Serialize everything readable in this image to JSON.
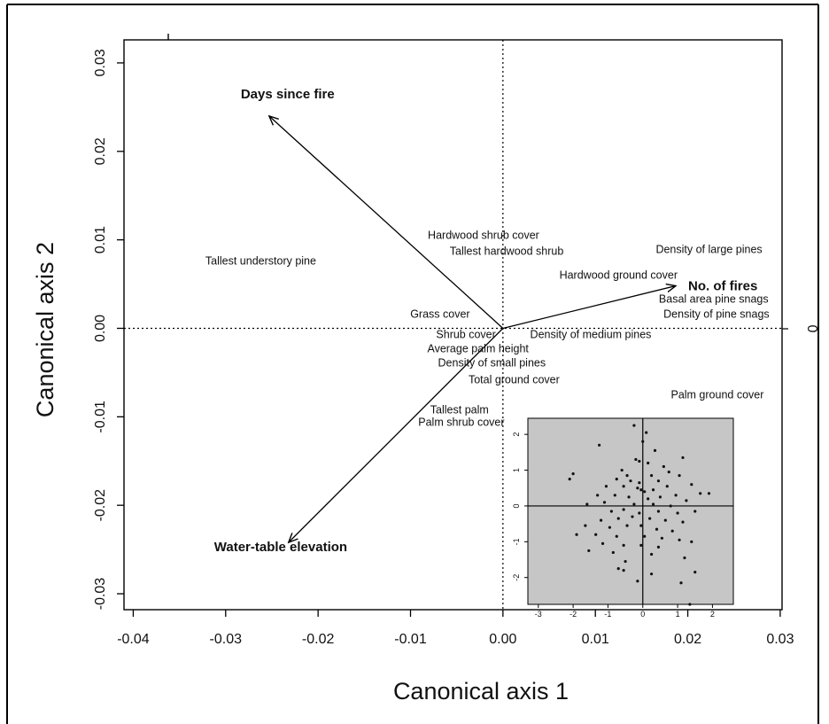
{
  "chart_data": {
    "type": "scatter",
    "title": "",
    "xlabel": "Canonical axis 1",
    "ylabel": "Canonical axis 2",
    "xlim": [
      -0.041,
      0.0302
    ],
    "ylim": [
      -0.0318,
      0.0326
    ],
    "x_ticks": [
      "-0.04",
      "-0.03",
      "-0.02",
      "-0.01",
      "0.00",
      "0.01",
      "0.02",
      "0.03"
    ],
    "y_ticks": [
      "-0.03",
      "-0.02",
      "-0.01",
      "0.00",
      "0.01",
      "0.02",
      "0.03"
    ],
    "right_axis_tick": "0",
    "grid": false,
    "reference_lines": {
      "x": 0,
      "y": 0,
      "style": "dotted"
    },
    "vectors": [
      {
        "name": "Days since fire",
        "x": -0.0253,
        "y": 0.024
      },
      {
        "name": "No. of fires",
        "x": 0.0187,
        "y": 0.0048
      },
      {
        "name": "Water-table elevation",
        "x": -0.0232,
        "y": -0.0242
      }
    ],
    "variables": [
      {
        "name": "Tallest understory pine",
        "x": -0.0262,
        "y": 0.0076
      },
      {
        "name": "Hardwood shrub cover",
        "x": -0.0021,
        "y": 0.0105
      },
      {
        "name": "Tallest hardwood shrub",
        "x": 0.0004,
        "y": 0.0087
      },
      {
        "name": "Density of large pines",
        "x": 0.0223,
        "y": 0.0089
      },
      {
        "name": "Hardwood ground cover",
        "x": 0.0125,
        "y": 0.006
      },
      {
        "name": "Basal area pine snags",
        "x": 0.0228,
        "y": 0.0033
      },
      {
        "name": "Density of pine snags",
        "x": 0.0231,
        "y": 0.0016
      },
      {
        "name": "Grass cover",
        "x": -0.0068,
        "y": 0.0016
      },
      {
        "name": "Shrub cover",
        "x": -0.004,
        "y": -0.0007
      },
      {
        "name": "Density of medium pines",
        "x": 0.0095,
        "y": -0.0007
      },
      {
        "name": "Average palm height",
        "x": -0.0027,
        "y": -0.0023
      },
      {
        "name": "Density of small pines",
        "x": -0.0012,
        "y": -0.0039
      },
      {
        "name": "Total ground cover",
        "x": 0.0012,
        "y": -0.0058
      },
      {
        "name": "Palm ground cover",
        "x": 0.0232,
        "y": -0.0075
      },
      {
        "name": "Tallest palm",
        "x": -0.0047,
        "y": -0.0092
      },
      {
        "name": "Palm shrub cover",
        "x": -0.0045,
        "y": -0.0106
      }
    ],
    "inset": {
      "type": "scatter",
      "xlim": [
        -3.3,
        2.6
      ],
      "ylim": [
        -2.75,
        2.45
      ],
      "x_ticks": [
        "-3",
        "-2",
        "-1",
        "0",
        "1",
        "2"
      ],
      "y_ticks": [
        "-2",
        "-1",
        "0",
        "1",
        "2"
      ],
      "background": "#c6c6c6",
      "points": [
        [
          -2.0,
          0.9
        ],
        [
          -2.1,
          0.75
        ],
        [
          -1.25,
          1.7
        ],
        [
          -0.25,
          2.25
        ],
        [
          0.1,
          2.05
        ],
        [
          0.0,
          1.8
        ],
        [
          -0.2,
          1.3
        ],
        [
          -0.1,
          1.25
        ],
        [
          0.15,
          1.2
        ],
        [
          0.35,
          1.55
        ],
        [
          -0.6,
          1.0
        ],
        [
          -0.45,
          0.85
        ],
        [
          0.6,
          1.1
        ],
        [
          1.15,
          1.35
        ],
        [
          -0.75,
          0.75
        ],
        [
          -0.35,
          0.7
        ],
        [
          -0.1,
          0.65
        ],
        [
          0.25,
          0.85
        ],
        [
          0.45,
          0.7
        ],
        [
          0.75,
          0.95
        ],
        [
          1.05,
          0.85
        ],
        [
          1.4,
          0.6
        ],
        [
          -1.05,
          0.55
        ],
        [
          -0.55,
          0.55
        ],
        [
          -0.15,
          0.5
        ],
        [
          -0.05,
          0.45
        ],
        [
          0.05,
          0.4
        ],
        [
          0.3,
          0.45
        ],
        [
          0.7,
          0.55
        ],
        [
          1.65,
          0.35
        ],
        [
          1.9,
          0.35
        ],
        [
          -1.3,
          0.3
        ],
        [
          -0.8,
          0.3
        ],
        [
          -0.4,
          0.25
        ],
        [
          0.15,
          0.2
        ],
        [
          0.5,
          0.25
        ],
        [
          0.95,
          0.3
        ],
        [
          1.25,
          0.15
        ],
        [
          -1.6,
          0.05
        ],
        [
          -1.1,
          0.1
        ],
        [
          -0.25,
          0.05
        ],
        [
          0.3,
          0.05
        ],
        [
          0.8,
          0.0
        ],
        [
          -0.9,
          -0.15
        ],
        [
          -0.55,
          -0.1
        ],
        [
          -0.1,
          -0.2
        ],
        [
          0.45,
          -0.15
        ],
        [
          1.0,
          -0.2
        ],
        [
          1.5,
          -0.15
        ],
        [
          -1.2,
          -0.4
        ],
        [
          -0.7,
          -0.35
        ],
        [
          -0.3,
          -0.3
        ],
        [
          0.2,
          -0.35
        ],
        [
          0.65,
          -0.4
        ],
        [
          1.15,
          -0.45
        ],
        [
          -1.65,
          -0.55
        ],
        [
          -0.95,
          -0.6
        ],
        [
          -0.45,
          -0.55
        ],
        [
          -0.05,
          -0.55
        ],
        [
          0.4,
          -0.65
        ],
        [
          0.85,
          -0.7
        ],
        [
          -1.9,
          -0.8
        ],
        [
          -1.35,
          -0.8
        ],
        [
          -0.75,
          -0.85
        ],
        [
          0.05,
          -0.85
        ],
        [
          0.55,
          -0.9
        ],
        [
          1.05,
          -0.95
        ],
        [
          -1.15,
          -1.05
        ],
        [
          -0.55,
          -1.1
        ],
        [
          -0.05,
          -1.1
        ],
        [
          0.45,
          -1.15
        ],
        [
          1.4,
          -1.0
        ],
        [
          -1.55,
          -1.25
        ],
        [
          -0.85,
          -1.3
        ],
        [
          0.25,
          -1.35
        ],
        [
          1.2,
          -1.45
        ],
        [
          -0.5,
          -1.55
        ],
        [
          -0.7,
          -1.75
        ],
        [
          -0.55,
          -1.8
        ],
        [
          0.25,
          -1.9
        ],
        [
          1.5,
          -1.85
        ],
        [
          1.1,
          -2.15
        ],
        [
          -0.15,
          -2.1
        ],
        [
          1.35,
          -2.75
        ]
      ]
    }
  }
}
